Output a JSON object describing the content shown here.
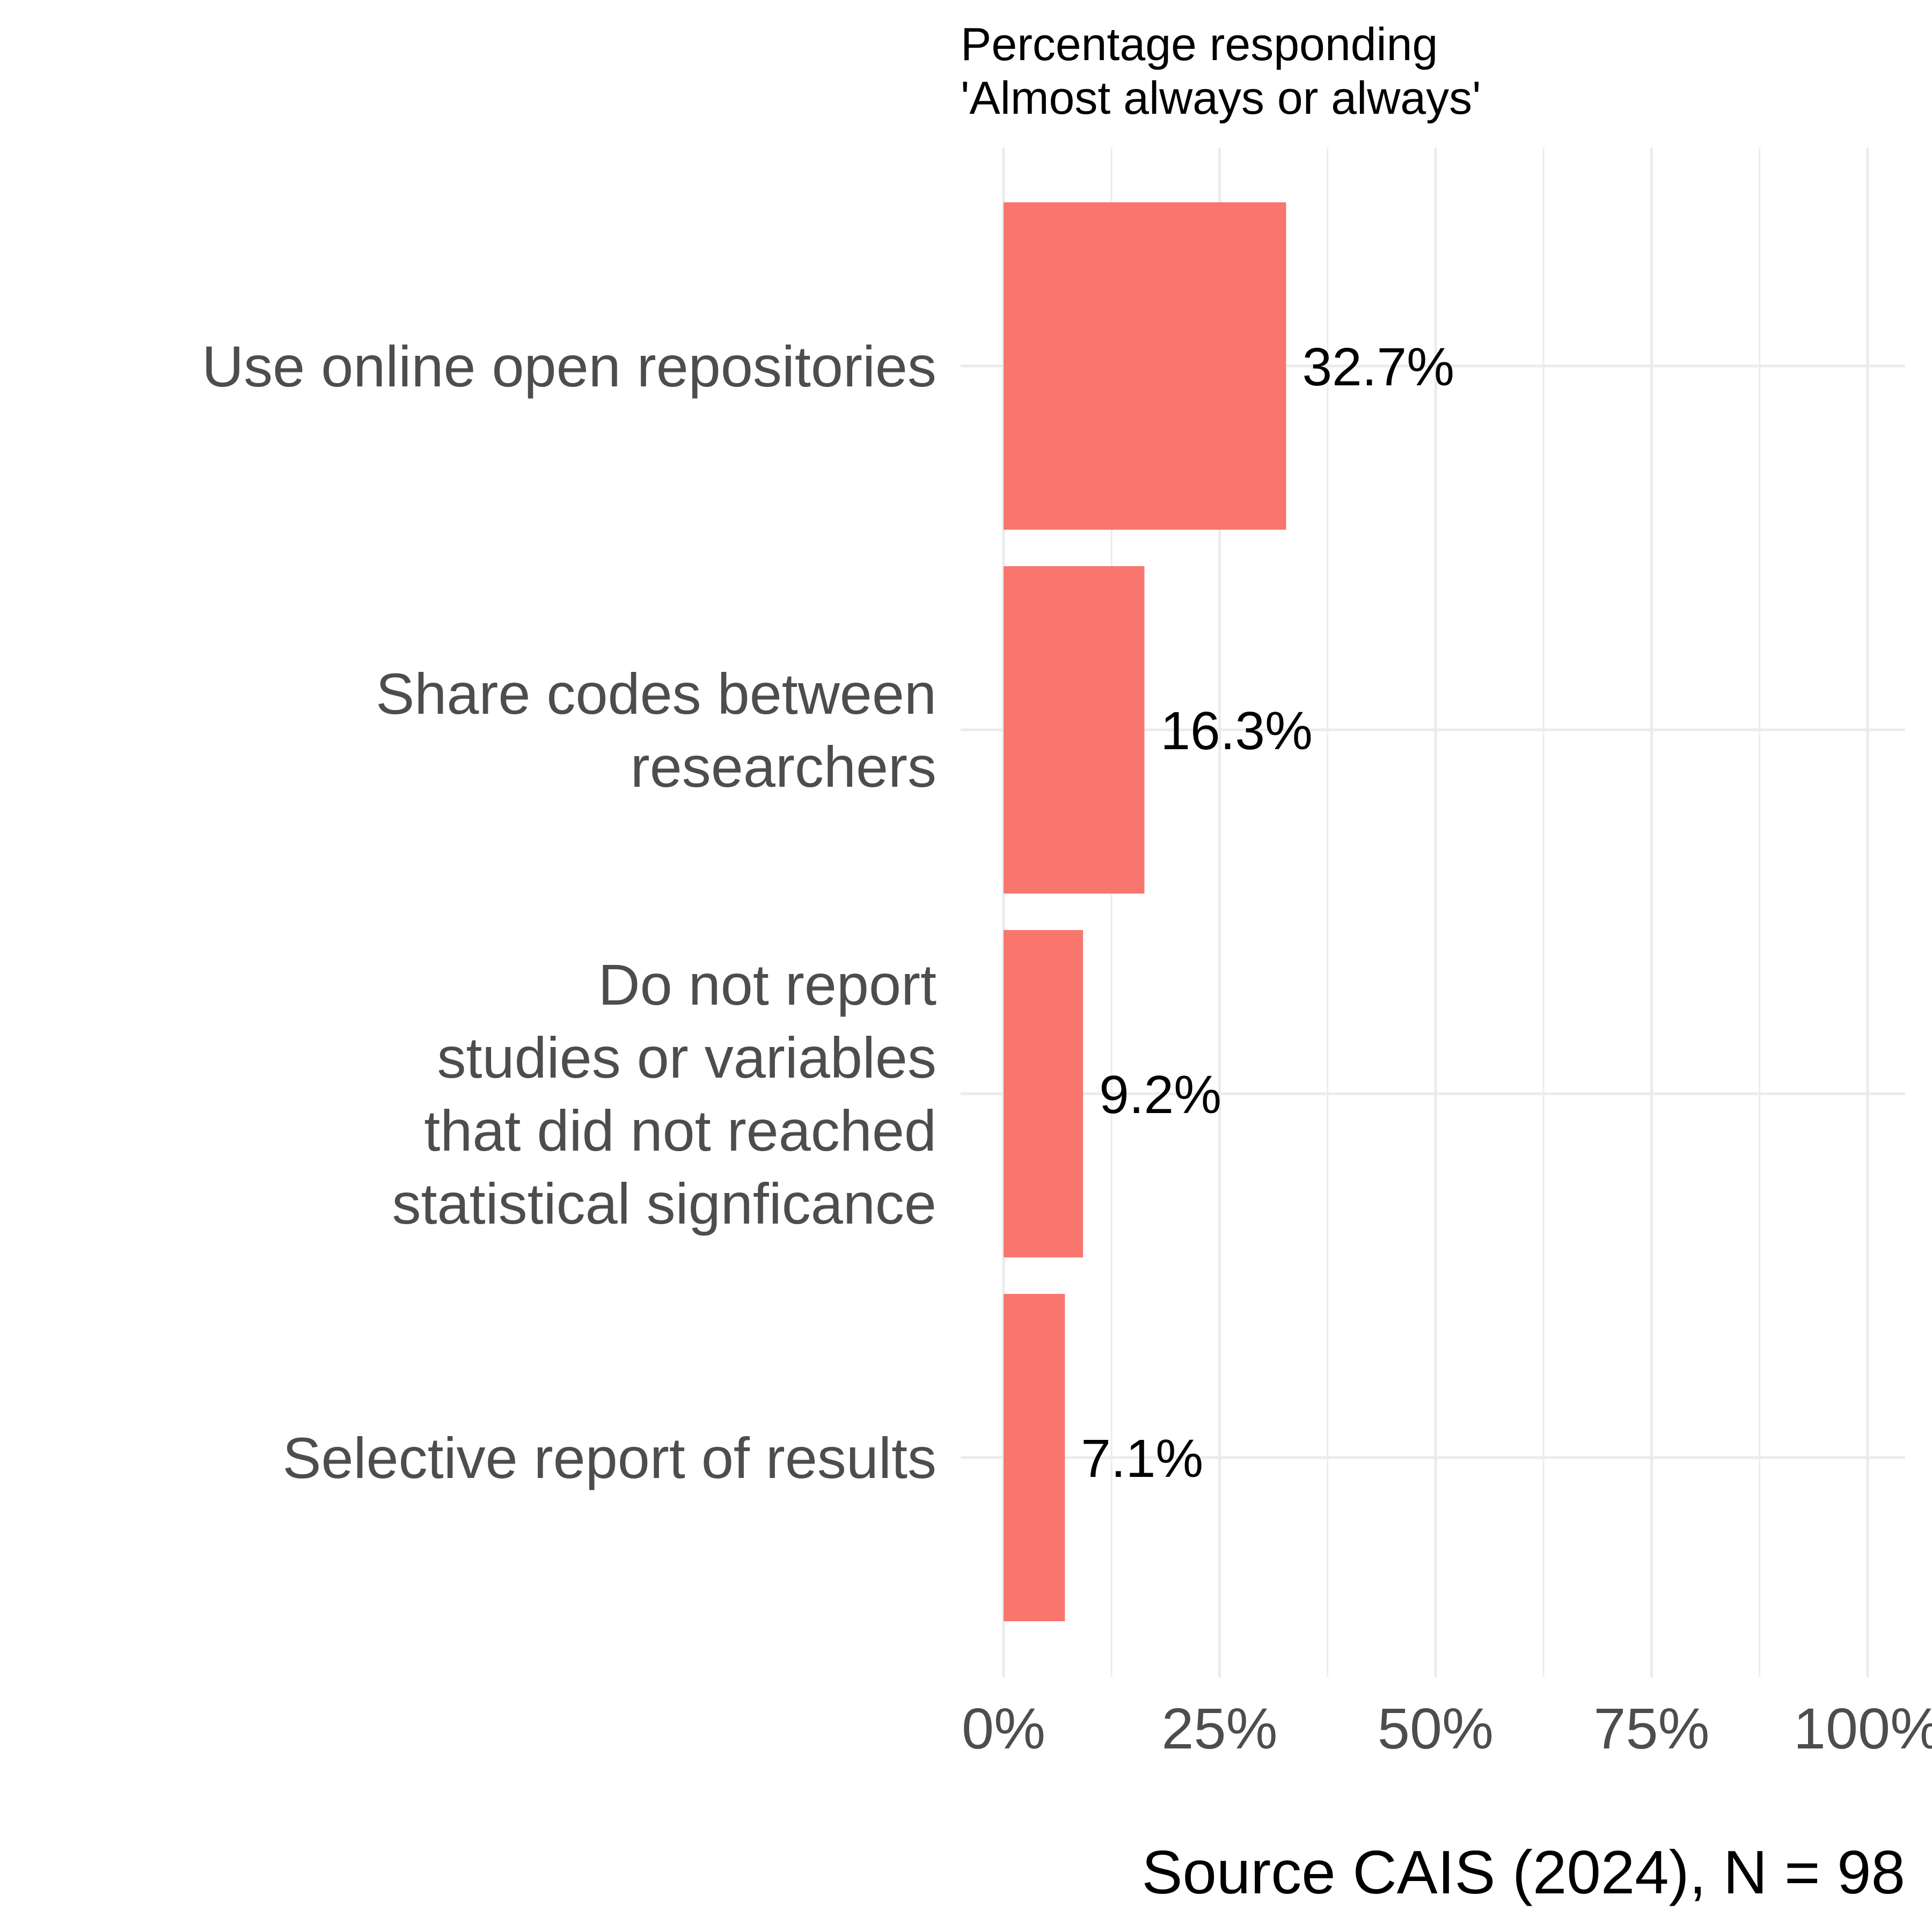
{
  "chart_data": {
    "type": "bar",
    "orientation": "horizontal",
    "subtitle_lines": [
      "Percentage responding",
      "'Almost always or always'"
    ],
    "categories": [
      [
        "Use online open repositories"
      ],
      [
        "Share codes between",
        "researchers"
      ],
      [
        "Do not report",
        "studies or variables",
        "that did not reached",
        "statistical signficance"
      ],
      [
        "Selective report of results"
      ]
    ],
    "values": [
      32.7,
      16.3,
      9.2,
      7.1
    ],
    "value_labels": [
      "32.7%",
      "16.3%",
      "9.2%",
      "7.1%"
    ],
    "xlim": [
      0,
      100
    ],
    "x_ticks": [
      0,
      25,
      50,
      75,
      100
    ],
    "x_tick_labels": [
      "0%",
      "25%",
      "50%",
      "75%",
      "100%"
    ],
    "xlabel": "",
    "ylabel": "",
    "caption": "Source CAIS (2024), N = 98",
    "grid": true,
    "legend": "none",
    "colors": {
      "bar": "#f8766d",
      "grid": "#ebebeb",
      "axis_text": "#4d4d4d"
    }
  }
}
